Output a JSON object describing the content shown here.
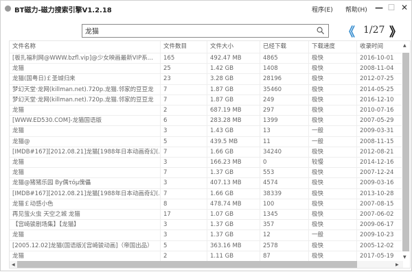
{
  "window": {
    "title": "BT磁力-磁力搜索引擎V1.2.18",
    "menu": [
      "程序(E)",
      "帮助(H)"
    ],
    "minimize": "—",
    "maximize": "☐",
    "close": "✕"
  },
  "search": {
    "value": "龙猫",
    "icon": "search-icon"
  },
  "pager": {
    "prev": "《",
    "info": "1/27",
    "next": "》"
  },
  "table": {
    "columns": [
      "文件名称",
      "文件数目",
      "文件大小",
      "已经下载",
      "下载速度",
      "收录时间"
    ],
    "rows": [
      [
        "[板扎福利网@WWW.bzfl.vip]@少女映画最新VIP系...",
        "165",
        "492.47 MB",
        "4865",
        "极快",
        "2016-10-01"
      ],
      [
        "龙猫",
        "25",
        "1.42 GB",
        "1408",
        "极快",
        "2008-11-04"
      ],
      [
        "龙猫(国粤日)￡圣城归来",
        "23",
        "3.28 GB",
        "28196",
        "极快",
        "2012-07-25"
      ],
      [
        "梦幻天堂·龙网(killman.net).720p.龙猫.邻家的豆豆龙",
        "7",
        "1.87 GB",
        "35460",
        "极快",
        "2014-05-25"
      ],
      [
        "梦幻天堂·龙网(killman.net).720p.龙猫.邻家的豆豆龙",
        "7",
        "1.87 GB",
        "249",
        "极快",
        "2016-12-10"
      ],
      [
        "龙猫",
        "2",
        "687.19 MB",
        "297",
        "极快",
        "2010-07-16"
      ],
      [
        "[WWW.ED530.COM]-龙猫国语版",
        "6",
        "283.28 MB",
        "1399",
        "极快",
        "2007-05-29"
      ],
      [
        "龙猫",
        "3",
        "1.43 GB",
        "13",
        "一般",
        "2009-03-31"
      ],
      [
        "龙猫@",
        "5",
        "439.5 MB",
        "11",
        "一般",
        "2008-11-15"
      ],
      [
        "[IMDB#167][2012.08.21]龙猫[1988年日本动画奇幻(...",
        "7",
        "1.66 GB",
        "34240",
        "极快",
        "2012-08-21"
      ],
      [
        "龙猫",
        "3",
        "166.23 MB",
        "0",
        "较慢",
        "2014-12-16"
      ],
      [
        "龙猫",
        "7",
        "1.37 GB",
        "553",
        "极快",
        "2007-12-24"
      ],
      [
        "龙猫@猪猪乐园 By偶τóμ傀儡",
        "3",
        "407.13 MB",
        "4574",
        "极快",
        "2009-03-16"
      ],
      [
        "[IMDB#167][2012.08.21]龙猫[1988年日本动画奇幻(...",
        "7",
        "1.66 GB",
        "38339",
        "极快",
        "2013-10-28"
      ],
      [
        "龙猫￡动感小色",
        "8",
        "478.74 MB",
        "100",
        "极快",
        "2007-08-15"
      ],
      [
        "再见萤火虫 天空之城 龙猫",
        "17",
        "1.07 GB",
        "1345",
        "极快",
        "2007-06-02"
      ],
      [
        "【宫崎骏剧场集】【龙猫】",
        "3",
        "1.37 GB",
        "357",
        "极快",
        "2009-06-17"
      ],
      [
        "龙猫",
        "3",
        "1.37 GB",
        "12",
        "一般",
        "2009-10-23"
      ],
      [
        "[2005.12.02]龙猫(国语版)[宫崎骏动画]（帝国出品）",
        "5",
        "363.16 MB",
        "2578",
        "极快",
        "2005-12-02"
      ],
      [
        "龙猫",
        "2",
        "1.11 GB",
        "87",
        "极快",
        "2017-05-19"
      ]
    ]
  }
}
